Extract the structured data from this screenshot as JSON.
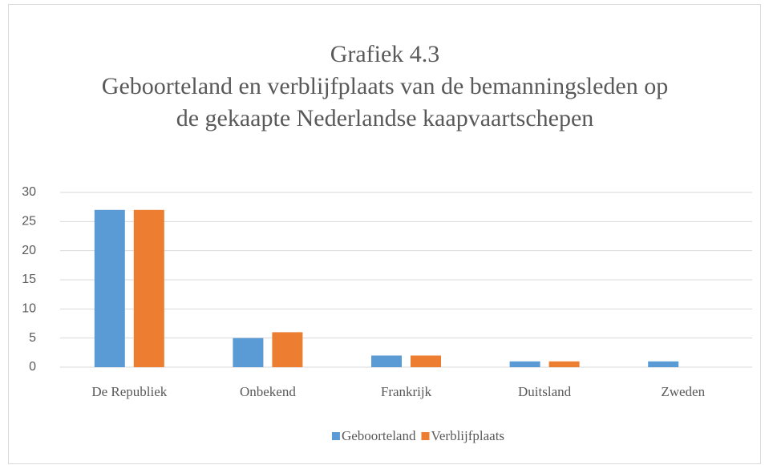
{
  "chart_data": {
    "type": "bar",
    "title": "Grafiek 4.3",
    "subtitle": "Geboorteland en verblijfplaats van de bemanningsleden op de gekaapte Nederlandse kaapvaartschepen",
    "categories": [
      "De Republiek",
      "Onbekend",
      "Frankrijk",
      "Duitsland",
      "Zweden"
    ],
    "series": [
      {
        "name": "Geboorteland",
        "color": "#5b9bd5",
        "values": [
          27,
          5,
          2,
          1,
          1
        ]
      },
      {
        "name": "Verblijfplaats",
        "color": "#ed7d31",
        "values": [
          27,
          6,
          2,
          1,
          0
        ]
      }
    ],
    "ylim": [
      0,
      30
    ],
    "yticks": [
      0,
      5,
      10,
      15,
      20,
      25,
      30
    ],
    "grid": true,
    "legend": "bottom"
  }
}
